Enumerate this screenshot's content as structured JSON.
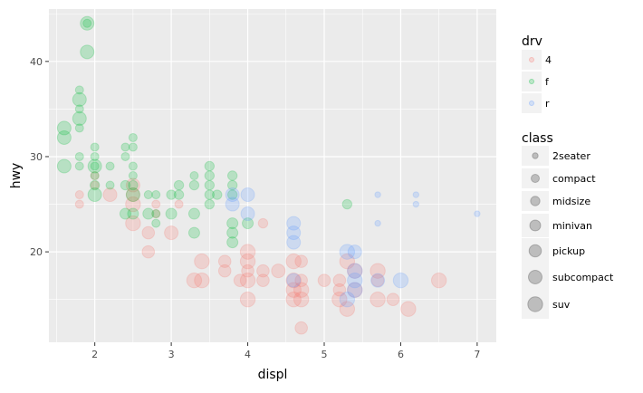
{
  "chart_data": {
    "type": "scatter",
    "title": "",
    "xlabel": "displ",
    "ylabel": "hwy",
    "xlim": [
      1.4,
      7.25
    ],
    "ylim": [
      10.5,
      45.5
    ],
    "x_ticks": [
      "2",
      "3",
      "4",
      "5",
      "6",
      "7"
    ],
    "y_ticks": [
      "20",
      "30",
      "40"
    ],
    "grid": true,
    "legend_position": "right",
    "color_legend": {
      "title": "drv",
      "entries": [
        {
          "label": "4",
          "color": "#F8766D"
        },
        {
          "label": "f",
          "color": "#00BA38"
        },
        {
          "label": "r",
          "color": "#619CFF"
        }
      ]
    },
    "size_legend": {
      "title": "class",
      "entries": [
        "2seater",
        "compact",
        "midsize",
        "minivan",
        "pickup",
        "subcompact",
        "suv"
      ]
    },
    "series": [
      {
        "drv": "4",
        "points": [
          {
            "x": 1.8,
            "y": 26,
            "class": "compact"
          },
          {
            "x": 1.8,
            "y": 25,
            "class": "compact"
          },
          {
            "x": 2.0,
            "y": 28,
            "class": "compact"
          },
          {
            "x": 2.0,
            "y": 27,
            "class": "compact"
          },
          {
            "x": 2.2,
            "y": 26,
            "class": "subcompact"
          },
          {
            "x": 2.5,
            "y": 27,
            "class": "subcompact"
          },
          {
            "x": 2.5,
            "y": 26,
            "class": "subcompact"
          },
          {
            "x": 2.5,
            "y": 25,
            "class": "suv"
          },
          {
            "x": 2.5,
            "y": 23,
            "class": "suv"
          },
          {
            "x": 2.7,
            "y": 20,
            "class": "pickup"
          },
          {
            "x": 2.7,
            "y": 22,
            "class": "pickup"
          },
          {
            "x": 2.8,
            "y": 25,
            "class": "compact"
          },
          {
            "x": 2.8,
            "y": 24,
            "class": "compact"
          },
          {
            "x": 3.0,
            "y": 22,
            "class": "subcompact"
          },
          {
            "x": 3.1,
            "y": 25,
            "class": "compact"
          },
          {
            "x": 3.3,
            "y": 17,
            "class": "suv"
          },
          {
            "x": 3.4,
            "y": 17,
            "class": "suv"
          },
          {
            "x": 3.4,
            "y": 19,
            "class": "suv"
          },
          {
            "x": 3.7,
            "y": 18,
            "class": "pickup"
          },
          {
            "x": 3.7,
            "y": 19,
            "class": "pickup"
          },
          {
            "x": 3.9,
            "y": 17,
            "class": "pickup"
          },
          {
            "x": 4.0,
            "y": 20,
            "class": "suv"
          },
          {
            "x": 4.0,
            "y": 19,
            "class": "suv"
          },
          {
            "x": 4.0,
            "y": 18,
            "class": "pickup"
          },
          {
            "x": 4.0,
            "y": 17,
            "class": "suv"
          },
          {
            "x": 4.0,
            "y": 15,
            "class": "suv"
          },
          {
            "x": 4.2,
            "y": 23,
            "class": "midsize"
          },
          {
            "x": 4.2,
            "y": 18,
            "class": "pickup"
          },
          {
            "x": 4.2,
            "y": 17,
            "class": "pickup"
          },
          {
            "x": 4.4,
            "y": 18,
            "class": "subcompact"
          },
          {
            "x": 4.6,
            "y": 19,
            "class": "suv"
          },
          {
            "x": 4.6,
            "y": 17,
            "class": "suv"
          },
          {
            "x": 4.6,
            "y": 16,
            "class": "suv"
          },
          {
            "x": 4.6,
            "y": 15,
            "class": "suv"
          },
          {
            "x": 4.7,
            "y": 19,
            "class": "pickup"
          },
          {
            "x": 4.7,
            "y": 17,
            "class": "pickup"
          },
          {
            "x": 4.7,
            "y": 16,
            "class": "suv"
          },
          {
            "x": 4.7,
            "y": 15,
            "class": "suv"
          },
          {
            "x": 4.7,
            "y": 12,
            "class": "pickup"
          },
          {
            "x": 5.0,
            "y": 17,
            "class": "pickup"
          },
          {
            "x": 5.2,
            "y": 17,
            "class": "pickup"
          },
          {
            "x": 5.2,
            "y": 16,
            "class": "pickup"
          },
          {
            "x": 5.2,
            "y": 15,
            "class": "suv"
          },
          {
            "x": 5.3,
            "y": 19,
            "class": "suv"
          },
          {
            "x": 5.3,
            "y": 14,
            "class": "suv"
          },
          {
            "x": 5.4,
            "y": 18,
            "class": "suv"
          },
          {
            "x": 5.4,
            "y": 16,
            "class": "suv"
          },
          {
            "x": 5.7,
            "y": 18,
            "class": "suv"
          },
          {
            "x": 5.7,
            "y": 17,
            "class": "pickup"
          },
          {
            "x": 5.7,
            "y": 15,
            "class": "suv"
          },
          {
            "x": 5.9,
            "y": 15,
            "class": "pickup"
          },
          {
            "x": 6.1,
            "y": 14,
            "class": "suv"
          },
          {
            "x": 6.5,
            "y": 17,
            "class": "suv"
          }
        ]
      },
      {
        "drv": "f",
        "points": [
          {
            "x": 1.6,
            "y": 33,
            "class": "subcompact"
          },
          {
            "x": 1.6,
            "y": 32,
            "class": "subcompact"
          },
          {
            "x": 1.6,
            "y": 29,
            "class": "subcompact"
          },
          {
            "x": 1.8,
            "y": 37,
            "class": "compact"
          },
          {
            "x": 1.8,
            "y": 36,
            "class": "subcompact"
          },
          {
            "x": 1.8,
            "y": 35,
            "class": "compact"
          },
          {
            "x": 1.8,
            "y": 34,
            "class": "subcompact"
          },
          {
            "x": 1.8,
            "y": 33,
            "class": "compact"
          },
          {
            "x": 1.8,
            "y": 30,
            "class": "compact"
          },
          {
            "x": 1.8,
            "y": 29,
            "class": "compact"
          },
          {
            "x": 1.9,
            "y": 44,
            "class": "subcompact"
          },
          {
            "x": 1.9,
            "y": 41,
            "class": "subcompact"
          },
          {
            "x": 1.9,
            "y": 44,
            "class": "compact"
          },
          {
            "x": 2.0,
            "y": 31,
            "class": "compact"
          },
          {
            "x": 2.0,
            "y": 30,
            "class": "compact"
          },
          {
            "x": 2.0,
            "y": 29,
            "class": "subcompact"
          },
          {
            "x": 2.0,
            "y": 28,
            "class": "compact"
          },
          {
            "x": 2.0,
            "y": 27,
            "class": "midsize"
          },
          {
            "x": 2.0,
            "y": 26,
            "class": "subcompact"
          },
          {
            "x": 2.0,
            "y": 29,
            "class": "compact"
          },
          {
            "x": 2.2,
            "y": 29,
            "class": "compact"
          },
          {
            "x": 2.2,
            "y": 27,
            "class": "compact"
          },
          {
            "x": 2.4,
            "y": 31,
            "class": "compact"
          },
          {
            "x": 2.4,
            "y": 30,
            "class": "compact"
          },
          {
            "x": 2.4,
            "y": 27,
            "class": "midsize"
          },
          {
            "x": 2.4,
            "y": 24,
            "class": "minivan"
          },
          {
            "x": 2.5,
            "y": 32,
            "class": "compact"
          },
          {
            "x": 2.5,
            "y": 31,
            "class": "compact"
          },
          {
            "x": 2.5,
            "y": 29,
            "class": "compact"
          },
          {
            "x": 2.5,
            "y": 28,
            "class": "compact"
          },
          {
            "x": 2.5,
            "y": 27,
            "class": "midsize"
          },
          {
            "x": 2.5,
            "y": 26,
            "class": "subcompact"
          },
          {
            "x": 2.5,
            "y": 24,
            "class": "minivan"
          },
          {
            "x": 2.7,
            "y": 26,
            "class": "compact"
          },
          {
            "x": 2.7,
            "y": 24,
            "class": "minivan"
          },
          {
            "x": 2.8,
            "y": 26,
            "class": "compact"
          },
          {
            "x": 2.8,
            "y": 24,
            "class": "compact"
          },
          {
            "x": 2.8,
            "y": 23,
            "class": "compact"
          },
          {
            "x": 3.0,
            "y": 26,
            "class": "midsize"
          },
          {
            "x": 3.0,
            "y": 24,
            "class": "minivan"
          },
          {
            "x": 3.1,
            "y": 27,
            "class": "midsize"
          },
          {
            "x": 3.1,
            "y": 26,
            "class": "midsize"
          },
          {
            "x": 3.3,
            "y": 28,
            "class": "compact"
          },
          {
            "x": 3.3,
            "y": 27,
            "class": "midsize"
          },
          {
            "x": 3.3,
            "y": 24,
            "class": "minivan"
          },
          {
            "x": 3.3,
            "y": 22,
            "class": "minivan"
          },
          {
            "x": 3.5,
            "y": 29,
            "class": "midsize"
          },
          {
            "x": 3.5,
            "y": 28,
            "class": "midsize"
          },
          {
            "x": 3.5,
            "y": 27,
            "class": "midsize"
          },
          {
            "x": 3.5,
            "y": 26,
            "class": "midsize"
          },
          {
            "x": 3.5,
            "y": 25,
            "class": "midsize"
          },
          {
            "x": 3.6,
            "y": 26,
            "class": "midsize"
          },
          {
            "x": 3.8,
            "y": 28,
            "class": "midsize"
          },
          {
            "x": 3.8,
            "y": 27,
            "class": "midsize"
          },
          {
            "x": 3.8,
            "y": 26,
            "class": "midsize"
          },
          {
            "x": 3.8,
            "y": 23,
            "class": "minivan"
          },
          {
            "x": 3.8,
            "y": 22,
            "class": "minivan"
          },
          {
            "x": 3.8,
            "y": 21,
            "class": "minivan"
          },
          {
            "x": 4.0,
            "y": 23,
            "class": "minivan"
          },
          {
            "x": 5.3,
            "y": 25,
            "class": "midsize"
          }
        ]
      },
      {
        "drv": "r",
        "points": [
          {
            "x": 3.8,
            "y": 26,
            "class": "subcompact"
          },
          {
            "x": 3.8,
            "y": 25,
            "class": "subcompact"
          },
          {
            "x": 4.0,
            "y": 26,
            "class": "subcompact"
          },
          {
            "x": 4.0,
            "y": 24,
            "class": "subcompact"
          },
          {
            "x": 4.6,
            "y": 23,
            "class": "subcompact"
          },
          {
            "x": 4.6,
            "y": 22,
            "class": "subcompact"
          },
          {
            "x": 4.6,
            "y": 21,
            "class": "subcompact"
          },
          {
            "x": 4.6,
            "y": 17,
            "class": "subcompact"
          },
          {
            "x": 5.3,
            "y": 20,
            "class": "suv"
          },
          {
            "x": 5.4,
            "y": 20,
            "class": "subcompact"
          },
          {
            "x": 5.4,
            "y": 18,
            "class": "suv"
          },
          {
            "x": 5.4,
            "y": 17,
            "class": "suv"
          },
          {
            "x": 5.4,
            "y": 16,
            "class": "suv"
          },
          {
            "x": 5.3,
            "y": 15,
            "class": "suv"
          },
          {
            "x": 5.7,
            "y": 26,
            "class": "2seater"
          },
          {
            "x": 5.7,
            "y": 23,
            "class": "2seater"
          },
          {
            "x": 5.7,
            "y": 17,
            "class": "subcompact"
          },
          {
            "x": 6.0,
            "y": 17,
            "class": "suv"
          },
          {
            "x": 6.2,
            "y": 26,
            "class": "2seater"
          },
          {
            "x": 6.2,
            "y": 25,
            "class": "2seater"
          },
          {
            "x": 7.0,
            "y": 24,
            "class": "2seater"
          }
        ]
      }
    ]
  }
}
